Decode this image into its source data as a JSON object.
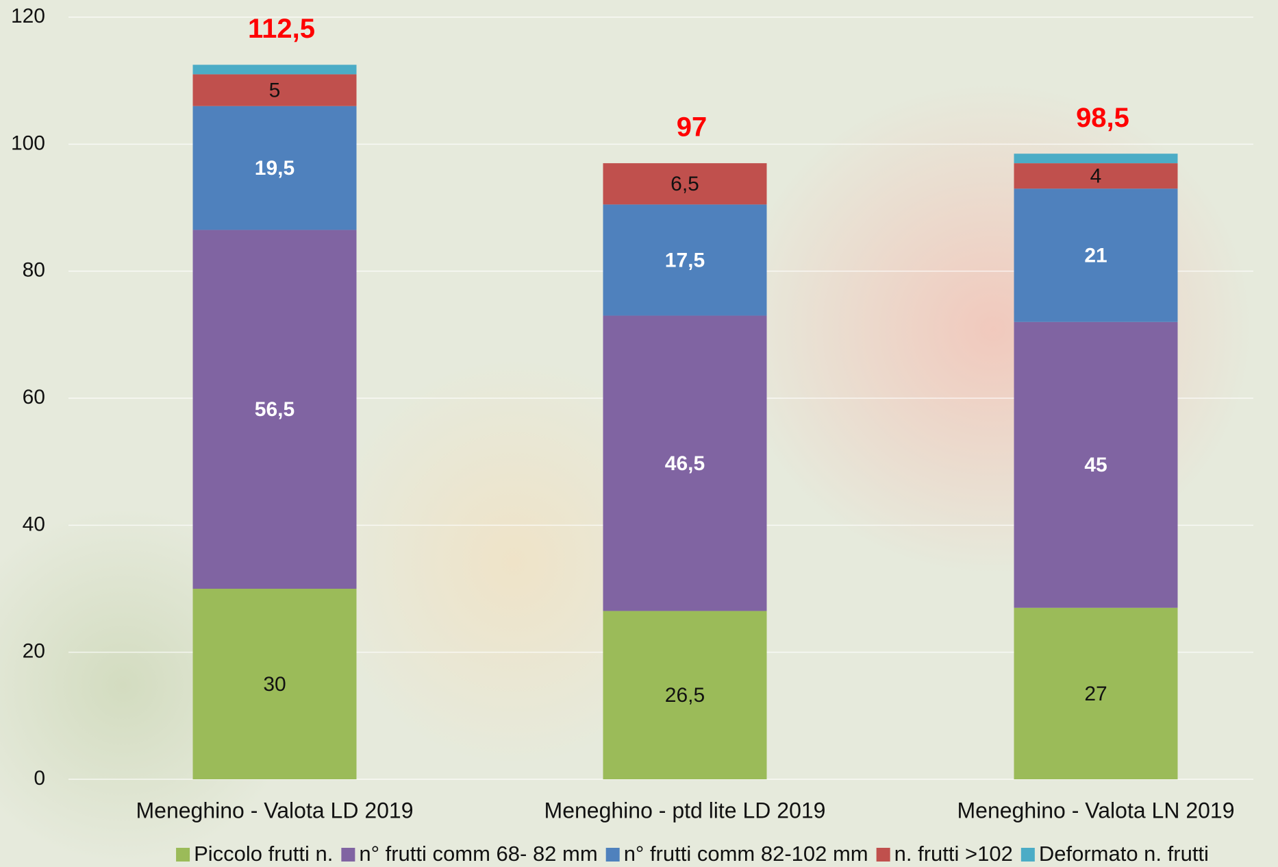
{
  "chart_data": {
    "type": "stacked_bar",
    "categories": [
      "Meneghino - Valota LD 2019",
      "Meneghino - ptd lite LD 2019",
      "Meneghino - Valota LN 2019"
    ],
    "series": [
      {
        "name": "Piccolo frutti n.",
        "color": "#9bbb59",
        "label_color": "#111111",
        "label_bold": false,
        "values": [
          30,
          26.5,
          27
        ],
        "value_labels": [
          "30",
          "26,5",
          "27"
        ]
      },
      {
        "name": "n° frutti comm 68- 82 mm",
        "color": "#8064a2",
        "label_color": "#ffffff",
        "label_bold": true,
        "values": [
          56.5,
          46.5,
          45
        ],
        "value_labels": [
          "56,5",
          "46,5",
          "45"
        ]
      },
      {
        "name": "n° frutti comm 82-102 mm",
        "color": "#4f81bd",
        "label_color": "#ffffff",
        "label_bold": true,
        "values": [
          19.5,
          17.5,
          21
        ],
        "value_labels": [
          "19,5",
          "17,5",
          "21"
        ]
      },
      {
        "name": "n. frutti >102",
        "color": "#c0504d",
        "label_color": "#111111",
        "label_bold": false,
        "values": [
          5,
          6.5,
          4
        ],
        "value_labels": [
          "5",
          "6,5",
          "4"
        ]
      },
      {
        "name": "Deformato n. frutti",
        "color": "#4bacc6",
        "values": [
          1.5,
          0,
          1.5
        ]
      }
    ],
    "totals": {
      "color": "#ff0000",
      "values": [
        112.5,
        97,
        98.5
      ],
      "value_labels": [
        "112,5",
        "97",
        "98,5"
      ]
    },
    "ylim": [
      0,
      120
    ],
    "yticks": [
      0,
      20,
      40,
      60,
      80,
      100,
      120
    ],
    "grid": true,
    "legend": "bottom"
  }
}
